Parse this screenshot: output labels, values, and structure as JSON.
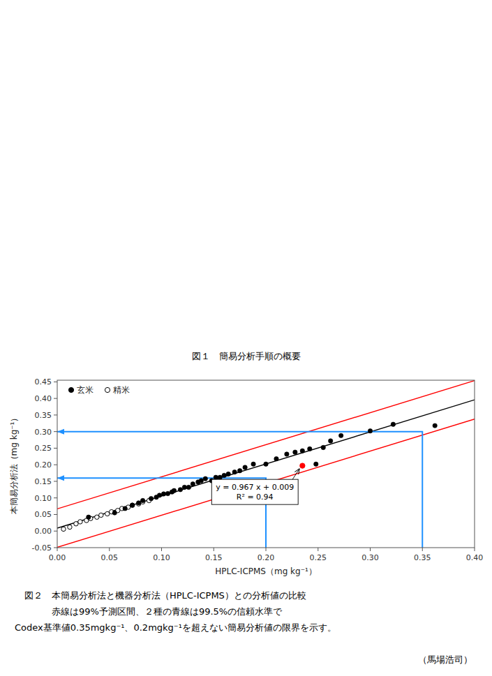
{
  "chart_data": {
    "type": "scatter",
    "captions": [
      "図１　簡易分析手順の概要",
      "図２　本簡易分析法と機器分析法（HPLC-ICPMS）との分析値の比較",
      "　　　赤線は99%予測区間、２種の青線は99.5%の信頼水準で",
      "Codex基準値0.35mgkg⁻¹、0.2mgkg⁻¹を超えない簡易分析値の限界を示す。",
      "（馬場浩司）"
    ],
    "x_label": "HPLC-ICPMS（mg kg⁻¹）",
    "y_label": "本簡易分析法（mg kg⁻¹）",
    "xlim": [
      0.0,
      0.4
    ],
    "ylim": [
      -0.05,
      0.455
    ],
    "xticks": [
      {
        "value": 0.0,
        "label": "0.00"
      },
      {
        "value": 0.05,
        "label": "0.05"
      },
      {
        "value": 0.1,
        "label": "0.10"
      },
      {
        "value": 0.15,
        "label": "0.15"
      },
      {
        "value": 0.2,
        "label": "0.20"
      },
      {
        "value": 0.25,
        "label": "0.25"
      },
      {
        "value": 0.3,
        "label": "0.30"
      },
      {
        "value": 0.35,
        "label": "0.35"
      },
      {
        "value": 0.4,
        "label": "0.40"
      }
    ],
    "yticks": [
      {
        "value": -0.05,
        "label": "-0.05"
      },
      {
        "value": 0.0,
        "label": "0.00"
      },
      {
        "value": 0.05,
        "label": "0.05"
      },
      {
        "value": 0.1,
        "label": "0.10"
      },
      {
        "value": 0.15,
        "label": "0.15"
      },
      {
        "value": 0.2,
        "label": "0.20"
      },
      {
        "value": 0.25,
        "label": "0.25"
      },
      {
        "value": 0.3,
        "label": "0.30"
      },
      {
        "value": 0.35,
        "label": "0.35"
      },
      {
        "value": 0.4,
        "label": "0.40"
      },
      {
        "value": 0.45,
        "label": "0.45"
      }
    ],
    "grid": false,
    "legend": "upper-left",
    "series": [
      {
        "name": "玄米",
        "type": "scatter",
        "marker": "circle",
        "color": "#000000",
        "x": [
          0.03,
          0.055,
          0.065,
          0.072,
          0.078,
          0.082,
          0.09,
          0.095,
          0.098,
          0.102,
          0.106,
          0.11,
          0.112,
          0.118,
          0.122,
          0.126,
          0.13,
          0.135,
          0.138,
          0.142,
          0.148,
          0.152,
          0.156,
          0.16,
          0.164,
          0.17,
          0.175,
          0.18,
          0.188,
          0.2,
          0.21,
          0.22,
          0.228,
          0.235,
          0.242,
          0.248,
          0.255,
          0.262,
          0.272,
          0.3,
          0.322,
          0.362
        ],
        "values": [
          0.042,
          0.055,
          0.068,
          0.078,
          0.085,
          0.092,
          0.098,
          0.102,
          0.108,
          0.112,
          0.113,
          0.118,
          0.122,
          0.125,
          0.132,
          0.132,
          0.142,
          0.148,
          0.152,
          0.158,
          0.152,
          0.162,
          0.162,
          0.168,
          0.172,
          0.178,
          0.182,
          0.192,
          0.202,
          0.202,
          0.218,
          0.232,
          0.238,
          0.242,
          0.248,
          0.202,
          0.252,
          0.272,
          0.288,
          0.302,
          0.322,
          0.318
        ]
      },
      {
        "name": "精米",
        "type": "scatter",
        "marker": "open-circle",
        "color": "#000000",
        "x": [
          0.006,
          0.012,
          0.018,
          0.022,
          0.028,
          0.032,
          0.038,
          0.042,
          0.048,
          0.052,
          0.058,
          0.062,
          0.068,
          0.072,
          0.078,
          0.082,
          0.088
        ],
        "values": [
          0.006,
          0.012,
          0.022,
          0.028,
          0.032,
          0.038,
          0.042,
          0.048,
          0.052,
          0.058,
          0.062,
          0.068,
          0.072,
          0.078,
          0.082,
          0.088,
          0.092
        ]
      },
      {
        "type": "scatter",
        "marker": "circle",
        "color": "#FF0000",
        "x": [
          0.235
        ],
        "values": [
          0.197
        ]
      },
      {
        "type": "line",
        "line_style": "solid",
        "color": "#000000",
        "x": [
          0.0,
          0.4
        ],
        "values": [
          0.009,
          0.3958
        ]
      },
      {
        "type": "line",
        "line_style": "solid",
        "color": "#FF0000",
        "x": [
          0.0,
          0.4
        ],
        "values": [
          0.067,
          0.4538
        ]
      },
      {
        "type": "line",
        "line_style": "solid",
        "color": "#FF0000",
        "x": [
          0.0,
          0.4
        ],
        "values": [
          -0.049,
          0.3378
        ]
      },
      {
        "type": "line",
        "line_style": "solid",
        "marker": "arrow",
        "color": "#1E90FF",
        "x": [
          0.2,
          0.2,
          0.0
        ],
        "values": [
          -0.05,
          0.16,
          0.16
        ]
      },
      {
        "type": "line",
        "line_style": "solid",
        "marker": "arrow",
        "color": "#1E90FF",
        "x": [
          0.35,
          0.35,
          0.0
        ],
        "values": [
          -0.05,
          0.3,
          0.3
        ]
      }
    ],
    "annotations": [
      {
        "text": [
          "y = 0.967 x + 0.009",
          "R² = 0.94"
        ],
        "x": 0.148,
        "y": 0.118,
        "target": 2
      }
    ]
  }
}
